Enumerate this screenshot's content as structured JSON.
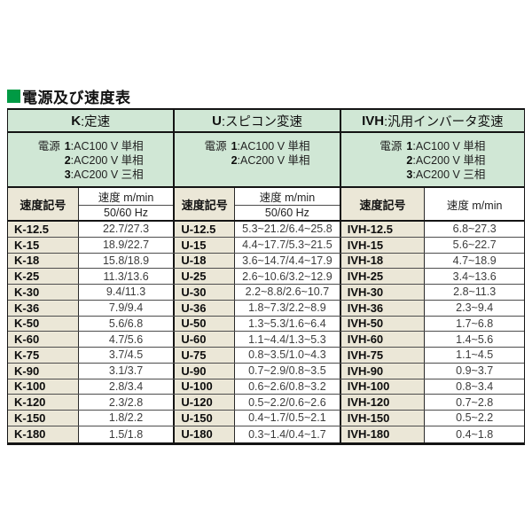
{
  "title": {
    "text": "電源及び速度表"
  },
  "colors": {
    "accent_green": "#009a44",
    "header_green": "#d0e7d5",
    "code_beige": "#ebe7d7",
    "border_dark": "#141414"
  },
  "table": {
    "groups": [
      {
        "code": "K",
        "type_rest": ":定速",
        "power_label": "電源",
        "power_items": [
          {
            "num": "1",
            "desc": ":AC100 V 単相"
          },
          {
            "num": "2",
            "desc": ":AC200 V 単相"
          },
          {
            "num": "3",
            "desc": ":AC200 V 三相"
          }
        ],
        "code_header": "速度記号",
        "value_header": "速度 m/min",
        "freq_header": "50/60 Hz",
        "rows": [
          {
            "code": "K-12.5",
            "value": "22.7/27.3"
          },
          {
            "code": "K-15",
            "value": "18.9/22.7"
          },
          {
            "code": "K-18",
            "value": "15.8/18.9"
          },
          {
            "code": "K-25",
            "value": "11.3/13.6"
          },
          {
            "code": "K-30",
            "value": "9.4/11.3"
          },
          {
            "code": "K-36",
            "value": "7.9/9.4"
          },
          {
            "code": "K-50",
            "value": "5.6/6.8"
          },
          {
            "code": "K-60",
            "value": "4.7/5.6"
          },
          {
            "code": "K-75",
            "value": "3.7/4.5"
          },
          {
            "code": "K-90",
            "value": "3.1/3.7"
          },
          {
            "code": "K-100",
            "value": "2.8/3.4"
          },
          {
            "code": "K-120",
            "value": "2.3/2.8"
          },
          {
            "code": "K-150",
            "value": "1.8/2.2"
          },
          {
            "code": "K-180",
            "value": "1.5/1.8"
          }
        ]
      },
      {
        "code": "U",
        "type_rest": ":スピコン変速",
        "power_label": "電源",
        "power_items": [
          {
            "num": "1",
            "desc": ":AC100 V 単相"
          },
          {
            "num": "2",
            "desc": ":AC200 V 単相"
          }
        ],
        "code_header": "速度記号",
        "value_header": "速度 m/min",
        "freq_header": "50/60 Hz",
        "rows": [
          {
            "code": "U-12.5",
            "value": "5.3~21.2/6.4~25.8"
          },
          {
            "code": "U-15",
            "value": "4.4~17.7/5.3~21.5"
          },
          {
            "code": "U-18",
            "value": "3.6~14.7/4.4~17.9"
          },
          {
            "code": "U-25",
            "value": "2.6~10.6/3.2~12.9"
          },
          {
            "code": "U-30",
            "value": "2.2~8.8/2.6~10.7"
          },
          {
            "code": "U-36",
            "value": "1.8~7.3/2.2~8.9"
          },
          {
            "code": "U-50",
            "value": "1.3~5.3/1.6~6.4"
          },
          {
            "code": "U-60",
            "value": "1.1~4.4/1.3~5.3"
          },
          {
            "code": "U-75",
            "value": "0.8~3.5/1.0~4.3"
          },
          {
            "code": "U-90",
            "value": "0.7~2.9/0.8~3.5"
          },
          {
            "code": "U-100",
            "value": "0.6~2.6/0.8~3.2"
          },
          {
            "code": "U-120",
            "value": "0.5~2.2/0.6~2.6"
          },
          {
            "code": "U-150",
            "value": "0.4~1.7/0.5~2.1"
          },
          {
            "code": "U-180",
            "value": "0.3~1.4/0.4~1.7"
          }
        ]
      },
      {
        "code": "IVH",
        "type_rest": ":汎用インバータ変速",
        "power_label": "電源",
        "power_items": [
          {
            "num": "1",
            "desc": ":AC100 V 単相"
          },
          {
            "num": "2",
            "desc": ":AC200 V 単相"
          },
          {
            "num": "3",
            "desc": ":AC200 V 三相"
          }
        ],
        "code_header": "速度記号",
        "value_header": "速度 m/min",
        "freq_header": "",
        "rows": [
          {
            "code": "IVH-12.5",
            "value": "6.8~27.3"
          },
          {
            "code": "IVH-15",
            "value": "5.6~22.7"
          },
          {
            "code": "IVH-18",
            "value": "4.7~18.9"
          },
          {
            "code": "IVH-25",
            "value": "3.4~13.6"
          },
          {
            "code": "IVH-30",
            "value": "2.8~11.3"
          },
          {
            "code": "IVH-36",
            "value": "2.3~9.4"
          },
          {
            "code": "IVH-50",
            "value": "1.7~6.8"
          },
          {
            "code": "IVH-60",
            "value": "1.4~5.6"
          },
          {
            "code": "IVH-75",
            "value": "1.1~4.5"
          },
          {
            "code": "IVH-90",
            "value": "0.9~3.7"
          },
          {
            "code": "IVH-100",
            "value": "0.8~3.4"
          },
          {
            "code": "IVH-120",
            "value": "0.7~2.8"
          },
          {
            "code": "IVH-150",
            "value": "0.5~2.2"
          },
          {
            "code": "IVH-180",
            "value": "0.4~1.8"
          }
        ]
      }
    ]
  }
}
